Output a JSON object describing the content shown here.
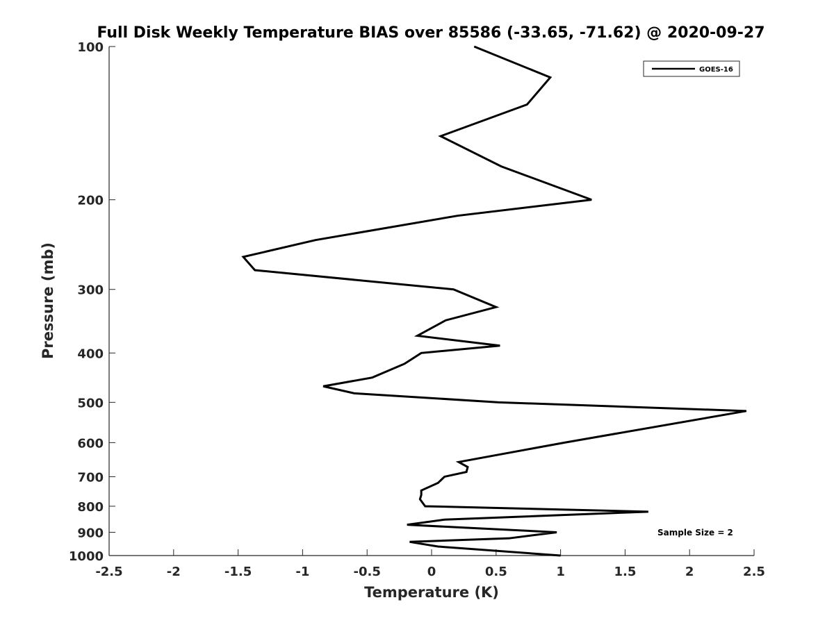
{
  "chart_data": {
    "type": "line",
    "title": "Full Disk Weekly Temperature BIAS over 85586 (-33.65, -71.62) @ 2020-09-27",
    "xlabel": "Temperature (K)",
    "ylabel": "Pressure (mb)",
    "xlim": [
      -2.5,
      2.5
    ],
    "ylim": [
      100,
      1000
    ],
    "yscale": "log",
    "yreversed": true,
    "x_ticks": [
      -2.5,
      -2,
      -1.5,
      -1,
      -0.5,
      0,
      0.5,
      1,
      1.5,
      2,
      2.5
    ],
    "x_tick_labels": [
      "-2.5",
      "-2",
      "-1.5",
      "-1",
      "-0.5",
      "0",
      "0.5",
      "1",
      "1.5",
      "2",
      "2.5"
    ],
    "y_ticks": [
      100,
      200,
      300,
      400,
      500,
      600,
      700,
      800,
      900,
      1000
    ],
    "y_tick_labels": [
      "100",
      "200",
      "300",
      "400",
      "500",
      "600",
      "700",
      "800",
      "900",
      "1000"
    ],
    "grid": false,
    "legend": {
      "placement": "top-right",
      "entries": [
        "GOES-16"
      ]
    },
    "annotation": "Sample Size = 2",
    "series": [
      {
        "name": "GOES-16",
        "color": "#000000",
        "points": [
          [
            0.33,
            100
          ],
          [
            0.92,
            115
          ],
          [
            0.74,
            130
          ],
          [
            0.07,
            150
          ],
          [
            0.54,
            172
          ],
          [
            1.24,
            200
          ],
          [
            0.2,
            215
          ],
          [
            -0.9,
            240
          ],
          [
            -1.46,
            259
          ],
          [
            -1.37,
            275
          ],
          [
            0.17,
            300
          ],
          [
            0.5,
            325
          ],
          [
            0.11,
            345
          ],
          [
            -0.11,
            370
          ],
          [
            0.53,
            387
          ],
          [
            -0.08,
            400
          ],
          [
            -0.21,
            420
          ],
          [
            -0.46,
            447
          ],
          [
            -0.84,
            465
          ],
          [
            -0.6,
            480
          ],
          [
            0.52,
            500
          ],
          [
            2.44,
            520
          ],
          [
            1.03,
            600
          ],
          [
            0.21,
            655
          ],
          [
            0.28,
            670
          ],
          [
            0.27,
            685
          ],
          [
            0.1,
            700
          ],
          [
            0.05,
            720
          ],
          [
            -0.08,
            745
          ],
          [
            -0.08,
            760
          ],
          [
            -0.09,
            775
          ],
          [
            -0.05,
            800
          ],
          [
            1.68,
            820
          ],
          [
            0.1,
            850
          ],
          [
            -0.19,
            870
          ],
          [
            0.97,
            900
          ],
          [
            0.6,
            925
          ],
          [
            -0.17,
            940
          ],
          [
            0.05,
            960
          ],
          [
            1.0,
            1000
          ]
        ]
      }
    ]
  }
}
